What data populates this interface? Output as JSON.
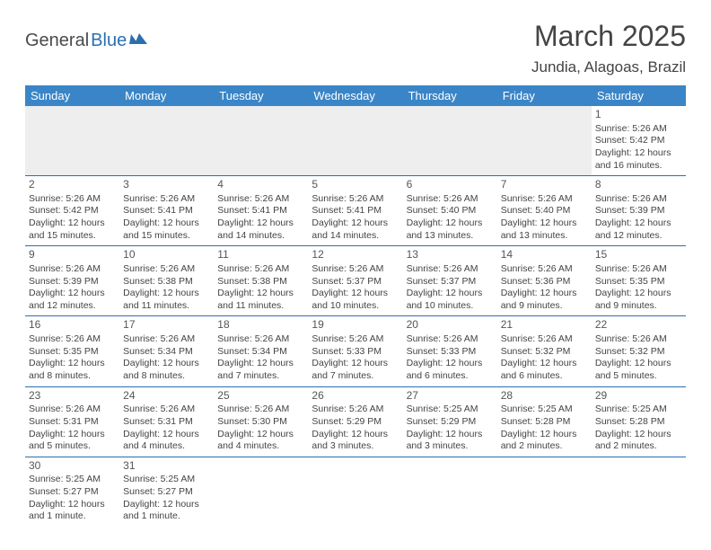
{
  "logo": {
    "text_gray": "General",
    "text_blue": "Blue"
  },
  "title": "March 2025",
  "location": "Jundia, Alagoas, Brazil",
  "colors": {
    "header_bg": "#3a85c7",
    "header_text": "#ffffff",
    "rule": "#2b6fb0",
    "blank_bg": "#eeeeee",
    "body_text": "#444444",
    "logo_blue": "#2b6fb0"
  },
  "day_headers": [
    "Sunday",
    "Monday",
    "Tuesday",
    "Wednesday",
    "Thursday",
    "Friday",
    "Saturday"
  ],
  "weeks": [
    [
      {
        "blank": true
      },
      {
        "blank": true
      },
      {
        "blank": true
      },
      {
        "blank": true
      },
      {
        "blank": true
      },
      {
        "blank": true
      },
      {
        "n": "1",
        "sr": "5:26 AM",
        "ss": "5:42 PM",
        "dl": "12 hours and 16 minutes."
      }
    ],
    [
      {
        "n": "2",
        "sr": "5:26 AM",
        "ss": "5:42 PM",
        "dl": "12 hours and 15 minutes."
      },
      {
        "n": "3",
        "sr": "5:26 AM",
        "ss": "5:41 PM",
        "dl": "12 hours and 15 minutes."
      },
      {
        "n": "4",
        "sr": "5:26 AM",
        "ss": "5:41 PM",
        "dl": "12 hours and 14 minutes."
      },
      {
        "n": "5",
        "sr": "5:26 AM",
        "ss": "5:41 PM",
        "dl": "12 hours and 14 minutes."
      },
      {
        "n": "6",
        "sr": "5:26 AM",
        "ss": "5:40 PM",
        "dl": "12 hours and 13 minutes."
      },
      {
        "n": "7",
        "sr": "5:26 AM",
        "ss": "5:40 PM",
        "dl": "12 hours and 13 minutes."
      },
      {
        "n": "8",
        "sr": "5:26 AM",
        "ss": "5:39 PM",
        "dl": "12 hours and 12 minutes."
      }
    ],
    [
      {
        "n": "9",
        "sr": "5:26 AM",
        "ss": "5:39 PM",
        "dl": "12 hours and 12 minutes."
      },
      {
        "n": "10",
        "sr": "5:26 AM",
        "ss": "5:38 PM",
        "dl": "12 hours and 11 minutes."
      },
      {
        "n": "11",
        "sr": "5:26 AM",
        "ss": "5:38 PM",
        "dl": "12 hours and 11 minutes."
      },
      {
        "n": "12",
        "sr": "5:26 AM",
        "ss": "5:37 PM",
        "dl": "12 hours and 10 minutes."
      },
      {
        "n": "13",
        "sr": "5:26 AM",
        "ss": "5:37 PM",
        "dl": "12 hours and 10 minutes."
      },
      {
        "n": "14",
        "sr": "5:26 AM",
        "ss": "5:36 PM",
        "dl": "12 hours and 9 minutes."
      },
      {
        "n": "15",
        "sr": "5:26 AM",
        "ss": "5:35 PM",
        "dl": "12 hours and 9 minutes."
      }
    ],
    [
      {
        "n": "16",
        "sr": "5:26 AM",
        "ss": "5:35 PM",
        "dl": "12 hours and 8 minutes."
      },
      {
        "n": "17",
        "sr": "5:26 AM",
        "ss": "5:34 PM",
        "dl": "12 hours and 8 minutes."
      },
      {
        "n": "18",
        "sr": "5:26 AM",
        "ss": "5:34 PM",
        "dl": "12 hours and 7 minutes."
      },
      {
        "n": "19",
        "sr": "5:26 AM",
        "ss": "5:33 PM",
        "dl": "12 hours and 7 minutes."
      },
      {
        "n": "20",
        "sr": "5:26 AM",
        "ss": "5:33 PM",
        "dl": "12 hours and 6 minutes."
      },
      {
        "n": "21",
        "sr": "5:26 AM",
        "ss": "5:32 PM",
        "dl": "12 hours and 6 minutes."
      },
      {
        "n": "22",
        "sr": "5:26 AM",
        "ss": "5:32 PM",
        "dl": "12 hours and 5 minutes."
      }
    ],
    [
      {
        "n": "23",
        "sr": "5:26 AM",
        "ss": "5:31 PM",
        "dl": "12 hours and 5 minutes."
      },
      {
        "n": "24",
        "sr": "5:26 AM",
        "ss": "5:31 PM",
        "dl": "12 hours and 4 minutes."
      },
      {
        "n": "25",
        "sr": "5:26 AM",
        "ss": "5:30 PM",
        "dl": "12 hours and 4 minutes."
      },
      {
        "n": "26",
        "sr": "5:26 AM",
        "ss": "5:29 PM",
        "dl": "12 hours and 3 minutes."
      },
      {
        "n": "27",
        "sr": "5:25 AM",
        "ss": "5:29 PM",
        "dl": "12 hours and 3 minutes."
      },
      {
        "n": "28",
        "sr": "5:25 AM",
        "ss": "5:28 PM",
        "dl": "12 hours and 2 minutes."
      },
      {
        "n": "29",
        "sr": "5:25 AM",
        "ss": "5:28 PM",
        "dl": "12 hours and 2 minutes."
      }
    ],
    [
      {
        "n": "30",
        "sr": "5:25 AM",
        "ss": "5:27 PM",
        "dl": "12 hours and 1 minute."
      },
      {
        "n": "31",
        "sr": "5:25 AM",
        "ss": "5:27 PM",
        "dl": "12 hours and 1 minute."
      },
      {
        "empty": true
      },
      {
        "empty": true
      },
      {
        "empty": true
      },
      {
        "empty": true
      },
      {
        "empty": true
      }
    ]
  ],
  "labels": {
    "sunrise": "Sunrise:",
    "sunset": "Sunset:",
    "daylight": "Daylight:"
  }
}
